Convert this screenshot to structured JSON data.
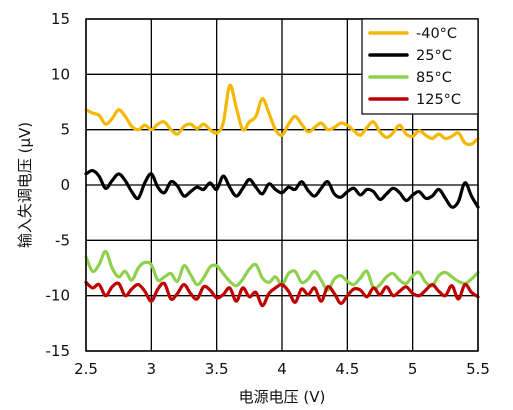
{
  "chart_data": {
    "type": "line",
    "xlabel": "电源电压 (V)",
    "ylabel": "输入失调电压 (μV)",
    "xlim": [
      2.5,
      5.5
    ],
    "ylim": [
      -15,
      15
    ],
    "xticks": [
      "2.5",
      "3",
      "3.5",
      "4",
      "4.5",
      "5",
      "5.5"
    ],
    "yticks": [
      "15",
      "10",
      "5",
      "0",
      "-5",
      "-10",
      "-15"
    ],
    "grid": true,
    "legend_position": "top-right",
    "series": [
      {
        "name": "-40°C",
        "color": "#f5b800",
        "x": [
          2.5,
          2.55,
          2.6,
          2.65,
          2.7,
          2.75,
          2.8,
          2.85,
          2.9,
          2.95,
          3.0,
          3.05,
          3.1,
          3.15,
          3.2,
          3.25,
          3.3,
          3.35,
          3.4,
          3.45,
          3.5,
          3.55,
          3.6,
          3.65,
          3.7,
          3.75,
          3.8,
          3.85,
          3.9,
          3.95,
          4.0,
          4.05,
          4.1,
          4.15,
          4.2,
          4.25,
          4.3,
          4.35,
          4.4,
          4.45,
          4.5,
          4.55,
          4.6,
          4.65,
          4.7,
          4.75,
          4.8,
          4.85,
          4.9,
          4.95,
          5.0,
          5.05,
          5.1,
          5.15,
          5.2,
          5.25,
          5.3,
          5.35,
          5.4,
          5.45,
          5.5
        ],
        "values": [
          6.8,
          6.5,
          6.3,
          5.5,
          6.0,
          6.8,
          6.2,
          5.3,
          5.0,
          5.4,
          5.0,
          5.5,
          5.7,
          5.0,
          4.6,
          5.3,
          5.5,
          5.1,
          5.5,
          5.0,
          4.7,
          5.6,
          9.0,
          7.0,
          5.0,
          5.7,
          6.2,
          7.8,
          6.5,
          5.0,
          4.5,
          5.5,
          6.2,
          5.5,
          4.8,
          5.2,
          5.6,
          5.0,
          5.2,
          5.6,
          5.4,
          4.9,
          4.5,
          5.2,
          5.7,
          4.8,
          4.3,
          4.7,
          5.4,
          4.6,
          4.4,
          4.9,
          4.5,
          4.2,
          4.6,
          4.2,
          4.4,
          4.7,
          3.8,
          3.7,
          4.2
        ]
      },
      {
        "name": "25°C",
        "color": "#000000",
        "x": [
          2.5,
          2.55,
          2.6,
          2.65,
          2.7,
          2.75,
          2.8,
          2.85,
          2.9,
          2.95,
          3.0,
          3.05,
          3.1,
          3.15,
          3.2,
          3.25,
          3.3,
          3.35,
          3.4,
          3.45,
          3.5,
          3.55,
          3.6,
          3.65,
          3.7,
          3.75,
          3.8,
          3.85,
          3.9,
          3.95,
          4.0,
          4.05,
          4.1,
          4.15,
          4.2,
          4.25,
          4.3,
          4.35,
          4.4,
          4.45,
          4.5,
          4.55,
          4.6,
          4.65,
          4.7,
          4.75,
          4.8,
          4.85,
          4.9,
          4.95,
          5.0,
          5.05,
          5.1,
          5.15,
          5.2,
          5.25,
          5.3,
          5.35,
          5.4,
          5.45,
          5.5
        ],
        "values": [
          1.0,
          1.3,
          0.8,
          -0.3,
          0.4,
          1.0,
          0.4,
          -0.6,
          -1.2,
          0.2,
          1.0,
          -0.2,
          -0.7,
          0.3,
          -0.1,
          -1.0,
          -0.6,
          -0.2,
          -0.4,
          0.2,
          -0.4,
          0.8,
          -0.2,
          -1.0,
          -0.3,
          0.5,
          -0.2,
          -0.8,
          0.1,
          -0.4,
          -0.7,
          -0.2,
          -0.4,
          0.3,
          -0.5,
          -1.0,
          -0.3,
          0.3,
          -0.8,
          -1.1,
          -0.6,
          -0.3,
          -0.9,
          -0.4,
          -0.6,
          -1.3,
          -0.8,
          -0.3,
          -0.7,
          -1.4,
          -0.9,
          -0.6,
          -1.2,
          -1.0,
          -0.4,
          -1.2,
          -2.0,
          -1.5,
          0.2,
          -1.0,
          -2.0
        ]
      },
      {
        "name": "85°C",
        "color": "#8fd14f",
        "x": [
          2.5,
          2.55,
          2.6,
          2.65,
          2.7,
          2.75,
          2.8,
          2.85,
          2.9,
          2.95,
          3.0,
          3.05,
          3.1,
          3.15,
          3.2,
          3.25,
          3.3,
          3.35,
          3.4,
          3.45,
          3.5,
          3.55,
          3.6,
          3.65,
          3.7,
          3.75,
          3.8,
          3.85,
          3.9,
          3.95,
          4.0,
          4.05,
          4.1,
          4.15,
          4.2,
          4.25,
          4.3,
          4.35,
          4.4,
          4.45,
          4.5,
          4.55,
          4.6,
          4.65,
          4.7,
          4.75,
          4.8,
          4.85,
          4.9,
          4.95,
          5.0,
          5.05,
          5.1,
          5.15,
          5.2,
          5.25,
          5.3,
          5.35,
          5.4,
          5.45,
          5.5
        ],
        "values": [
          -6.5,
          -7.8,
          -7.2,
          -6.0,
          -7.5,
          -8.3,
          -7.8,
          -8.6,
          -7.5,
          -7.0,
          -7.2,
          -8.6,
          -8.3,
          -8.0,
          -8.7,
          -7.3,
          -8.1,
          -9.0,
          -8.4,
          -7.4,
          -7.3,
          -8.0,
          -8.7,
          -9.1,
          -8.5,
          -7.6,
          -7.2,
          -8.4,
          -8.8,
          -8.3,
          -9.0,
          -8.0,
          -7.8,
          -8.8,
          -8.5,
          -7.8,
          -8.6,
          -9.5,
          -8.5,
          -8.2,
          -8.7,
          -9.0,
          -8.4,
          -7.8,
          -9.3,
          -9.0,
          -8.3,
          -8.0,
          -8.6,
          -8.9,
          -8.2,
          -7.9,
          -8.8,
          -9.1,
          -8.2,
          -7.9,
          -8.3,
          -8.7,
          -8.9,
          -8.5,
          -7.9
        ]
      },
      {
        "name": "125°C",
        "color": "#c00000",
        "x": [
          2.5,
          2.55,
          2.6,
          2.65,
          2.7,
          2.75,
          2.8,
          2.85,
          2.9,
          2.95,
          3.0,
          3.05,
          3.1,
          3.15,
          3.2,
          3.25,
          3.3,
          3.35,
          3.4,
          3.45,
          3.5,
          3.55,
          3.6,
          3.65,
          3.7,
          3.75,
          3.8,
          3.85,
          3.9,
          3.95,
          4.0,
          4.05,
          4.1,
          4.15,
          4.2,
          4.25,
          4.3,
          4.35,
          4.4,
          4.45,
          4.5,
          4.55,
          4.6,
          4.65,
          4.7,
          4.75,
          4.8,
          4.85,
          4.9,
          4.95,
          5.0,
          5.05,
          5.1,
          5.15,
          5.2,
          5.25,
          5.3,
          5.35,
          5.4,
          5.45,
          5.5
        ],
        "values": [
          -8.8,
          -9.3,
          -9.0,
          -10.0,
          -9.2,
          -8.9,
          -10.0,
          -9.4,
          -9.0,
          -9.6,
          -10.5,
          -9.4,
          -8.9,
          -10.3,
          -9.8,
          -9.0,
          -9.8,
          -10.3,
          -9.2,
          -9.5,
          -10.2,
          -9.9,
          -9.3,
          -10.5,
          -9.3,
          -10.1,
          -9.7,
          -10.9,
          -9.8,
          -9.3,
          -9.0,
          -9.6,
          -10.6,
          -9.4,
          -9.9,
          -9.3,
          -10.5,
          -9.2,
          -9.8,
          -10.7,
          -10.0,
          -9.4,
          -9.5,
          -10.1,
          -9.3,
          -9.9,
          -9.2,
          -10.0,
          -9.6,
          -9.2,
          -9.8,
          -10.0,
          -9.5,
          -9.0,
          -9.6,
          -10.0,
          -9.1,
          -10.3,
          -9.0,
          -9.7,
          -10.1
        ]
      }
    ]
  }
}
